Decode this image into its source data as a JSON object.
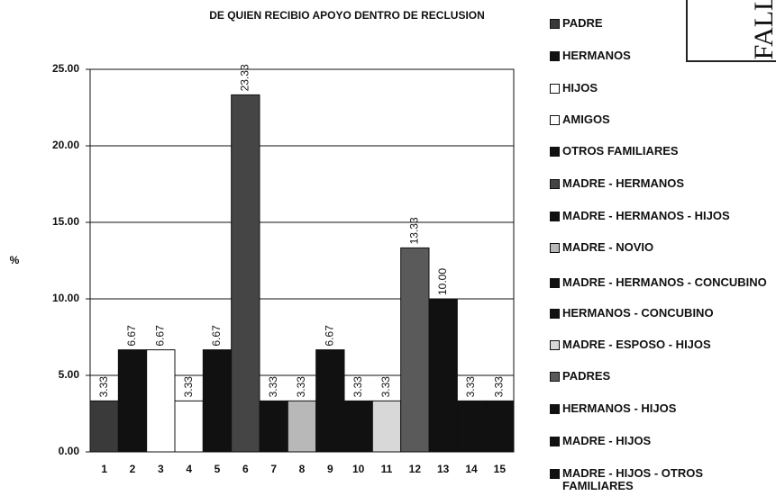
{
  "chart_data": {
    "type": "bar",
    "title": "DE QUIEN RECIBIO APOYO DENTRO DE RECLUSION",
    "y_label": "%",
    "stamp": "FALL",
    "categories": [
      "1",
      "2",
      "3",
      "4",
      "5",
      "6",
      "7",
      "8",
      "9",
      "10",
      "11",
      "12",
      "13",
      "14",
      "15"
    ],
    "values": [
      3.33,
      6.67,
      6.67,
      3.33,
      6.67,
      23.33,
      3.33,
      3.33,
      6.67,
      3.33,
      3.33,
      13.33,
      10,
      3.33,
      3.33
    ],
    "value_labels": [
      "3.33",
      "6.67",
      "6.67",
      "3.33",
      "6.67",
      "23.33",
      "3.33",
      "3.33",
      "6.67",
      "3.33",
      "3.33",
      "13.33",
      "10.00",
      "3.33",
      "3.33"
    ],
    "colors": [
      "#3a3a3a",
      "#111111",
      "#ffffff",
      "#ffffff",
      "#111111",
      "#454545",
      "#111111",
      "#b8b8b8",
      "#111111",
      "#111111",
      "#d8d8d8",
      "#5a5a5a",
      "#111111",
      "#111111",
      "#111111"
    ],
    "legend": [
      "PADRE",
      "HERMANOS",
      "HIJOS",
      "AMIGOS",
      "OTROS FAMILIARES",
      "MADRE - HERMANOS",
      "MADRE - HERMANOS  - HIJOS",
      "MADRE - NOVIO",
      "MADRE - HERMANOS - CONCUBINO",
      "HERMANOS - CONCUBINO",
      "MADRE - ESPOSO - HIJOS",
      "PADRES",
      "HERMANOS - HIJOS",
      "MADRE - HIJOS",
      "MADRE - HIJOS - OTROS FAMILIARES"
    ],
    "ylim": [
      0,
      25
    ],
    "yticks": [
      {
        "value": 0,
        "label": "0.00"
      },
      {
        "value": 5,
        "label": "5.00"
      },
      {
        "value": 10,
        "label": "10.00"
      },
      {
        "value": 15,
        "label": "15.00"
      },
      {
        "value": 20,
        "label": "20.00"
      },
      {
        "value": 25,
        "label": "25.00"
      }
    ],
    "grid": true
  }
}
